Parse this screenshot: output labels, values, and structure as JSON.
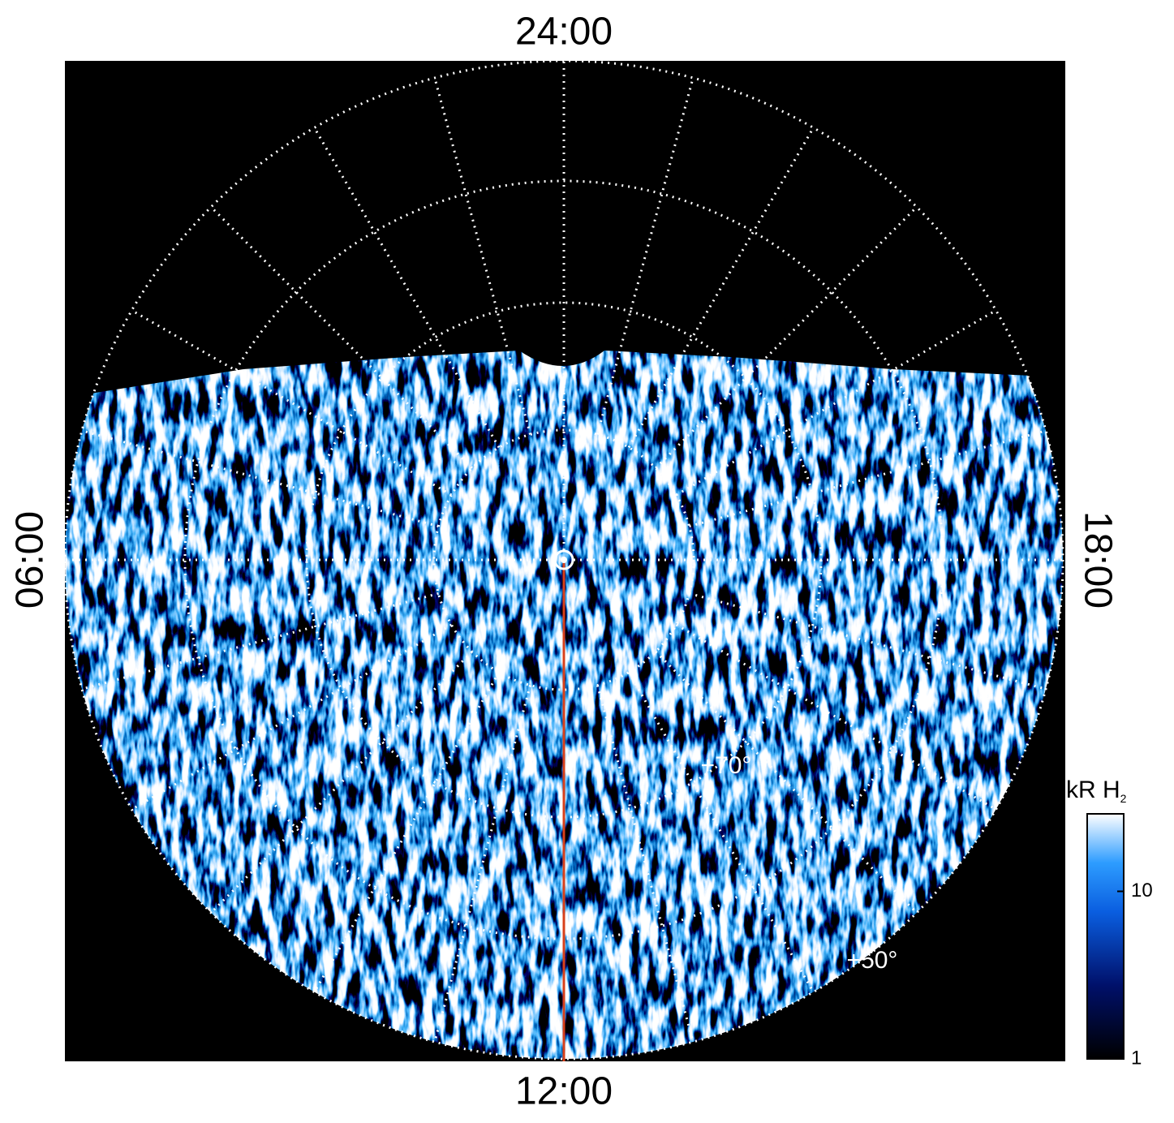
{
  "axis_labels": {
    "top": "24:00",
    "bottom": "12:00",
    "left": "06:00",
    "right": "18:00"
  },
  "latitude_labels": [
    "+70°",
    "+50°"
  ],
  "colorbar": {
    "title": "kR H",
    "title_subscript": "2",
    "scale": "log",
    "lim": [
      1,
      29
    ],
    "ticks": [
      1,
      10
    ]
  }
}
